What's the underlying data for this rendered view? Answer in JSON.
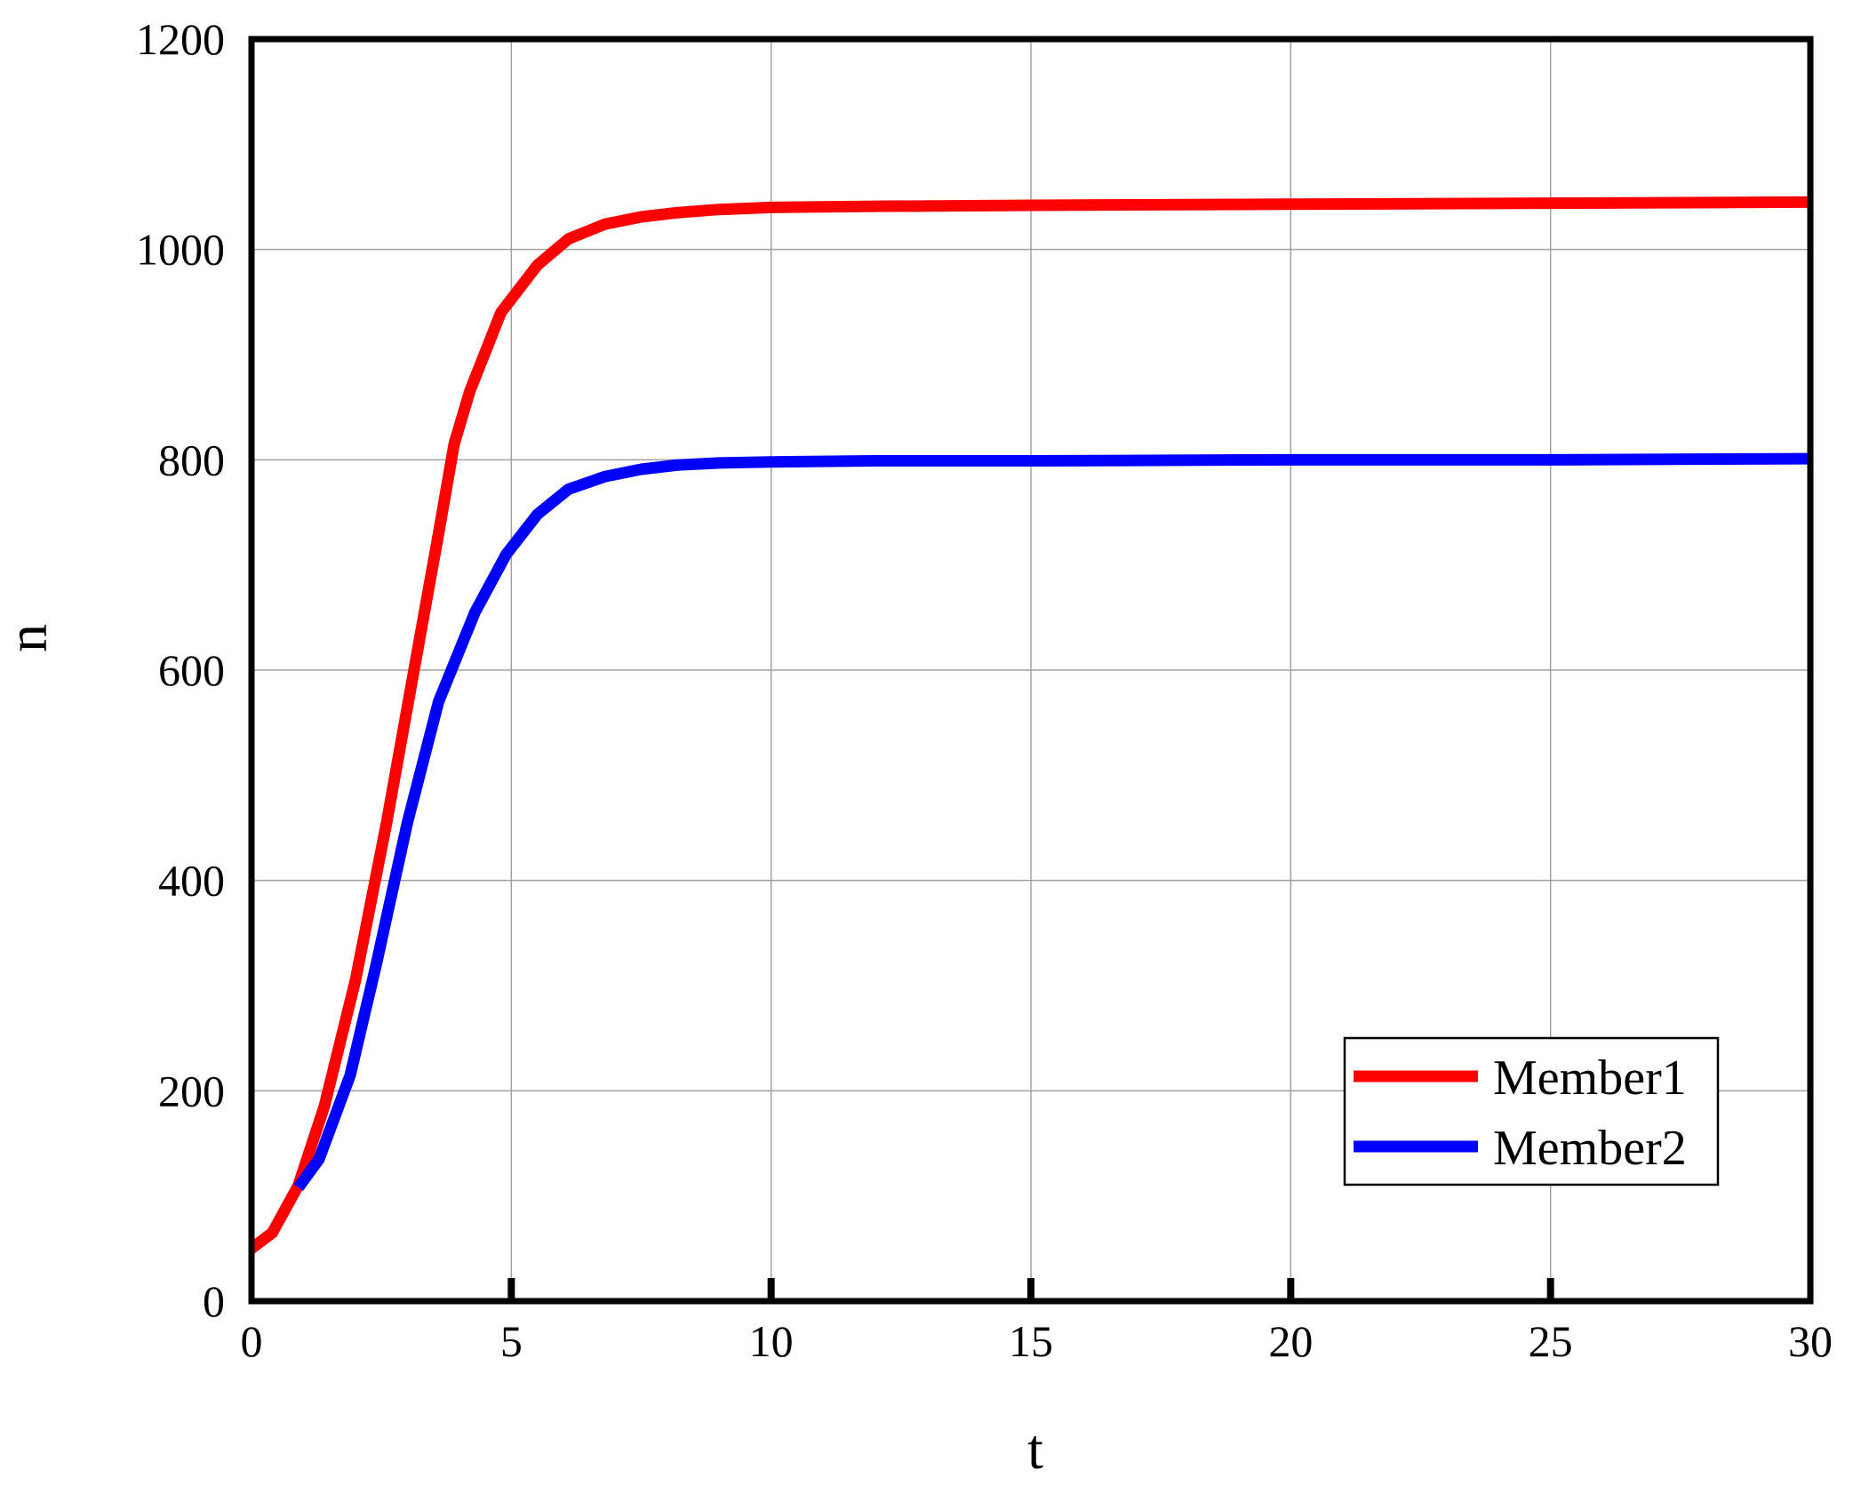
{
  "chart_data": {
    "type": "line",
    "title": "",
    "xlabel": "t",
    "ylabel": "n",
    "xlim": [
      0,
      30
    ],
    "ylim": [
      0,
      1200
    ],
    "xticks": [
      "0",
      "5",
      "10",
      "15",
      "20",
      "25",
      "30"
    ],
    "yticks": [
      "0",
      "200",
      "400",
      "600",
      "800",
      "1000",
      "1200"
    ],
    "grid": true,
    "legend_position": "bottom-right",
    "series": [
      {
        "name": "Member1",
        "color": "#ff0000",
        "x": [
          0,
          0.4,
          0.9,
          1.4,
          2.0,
          2.6,
          3.2,
          3.6,
          3.9,
          4.2,
          4.8,
          5.5,
          6.1,
          6.8,
          7.5,
          8.2,
          9.0,
          10.0,
          12.0,
          15.0,
          20.0,
          25.0,
          30.0
        ],
        "y": [
          50,
          65,
          110,
          185,
          305,
          455,
          620,
          730,
          815,
          865,
          940,
          985,
          1010,
          1024,
          1031,
          1035,
          1038,
          1040,
          1041,
          1042,
          1043,
          1044,
          1045
        ]
      },
      {
        "name": "Member2",
        "color": "#0000ff",
        "x": [
          0.9,
          1.3,
          1.9,
          2.4,
          3.0,
          3.6,
          4.3,
          4.9,
          5.5,
          6.1,
          6.8,
          7.5,
          8.2,
          9.0,
          10.0,
          12.0,
          15.0,
          20.0,
          25.0,
          30.0
        ],
        "y": [
          108,
          135,
          215,
          320,
          455,
          570,
          655,
          710,
          748,
          772,
          784,
          791,
          795,
          797,
          798,
          799,
          799,
          800,
          800,
          801
        ]
      }
    ]
  }
}
